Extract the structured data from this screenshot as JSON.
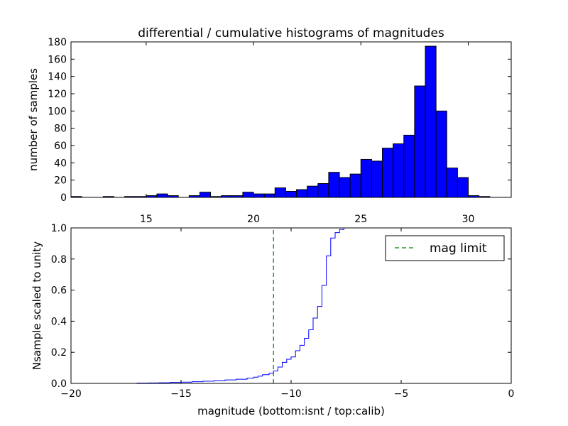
{
  "figure": {
    "title": "differential / cumulative histograms of magnitudes",
    "xlabel": "magnitude (bottom:isnt / top:calib)"
  },
  "chart_data": [
    {
      "type": "bar",
      "title": "differential / cumulative histograms of magnitudes",
      "xlabel": "",
      "ylabel": "number of samples",
      "xlim": [
        11.5,
        32
      ],
      "ylim": [
        0,
        180
      ],
      "xticks": [
        15,
        20,
        25,
        30
      ],
      "yticks": [
        0,
        20,
        40,
        60,
        80,
        100,
        120,
        140,
        160,
        180
      ],
      "xtick_position": "bottom",
      "bar_color": "#0000ff",
      "bar_edge_color": "#000000",
      "bins": [
        {
          "x0": 11.5,
          "x1": 12.0,
          "value": 1
        },
        {
          "x0": 12.0,
          "x1": 12.5,
          "value": 0
        },
        {
          "x0": 12.5,
          "x1": 13.0,
          "value": 0
        },
        {
          "x0": 13.0,
          "x1": 13.5,
          "value": 1
        },
        {
          "x0": 13.5,
          "x1": 14.0,
          "value": 0
        },
        {
          "x0": 14.0,
          "x1": 14.5,
          "value": 1
        },
        {
          "x0": 14.5,
          "x1": 15.0,
          "value": 1
        },
        {
          "x0": 15.0,
          "x1": 15.5,
          "value": 2
        },
        {
          "x0": 15.5,
          "x1": 16.0,
          "value": 4
        },
        {
          "x0": 16.0,
          "x1": 16.5,
          "value": 2
        },
        {
          "x0": 16.5,
          "x1": 17.0,
          "value": 0
        },
        {
          "x0": 17.0,
          "x1": 17.5,
          "value": 2
        },
        {
          "x0": 17.5,
          "x1": 18.0,
          "value": 6
        },
        {
          "x0": 18.0,
          "x1": 18.5,
          "value": 1
        },
        {
          "x0": 18.5,
          "x1": 19.0,
          "value": 2
        },
        {
          "x0": 19.0,
          "x1": 19.5,
          "value": 2
        },
        {
          "x0": 19.5,
          "x1": 20.0,
          "value": 6
        },
        {
          "x0": 20.0,
          "x1": 20.5,
          "value": 4
        },
        {
          "x0": 20.5,
          "x1": 21.0,
          "value": 4
        },
        {
          "x0": 21.0,
          "x1": 21.5,
          "value": 11
        },
        {
          "x0": 21.5,
          "x1": 22.0,
          "value": 7
        },
        {
          "x0": 22.0,
          "x1": 22.5,
          "value": 9
        },
        {
          "x0": 22.5,
          "x1": 23.0,
          "value": 13
        },
        {
          "x0": 23.0,
          "x1": 23.5,
          "value": 16
        },
        {
          "x0": 23.5,
          "x1": 24.0,
          "value": 29
        },
        {
          "x0": 24.0,
          "x1": 24.5,
          "value": 23
        },
        {
          "x0": 24.5,
          "x1": 25.0,
          "value": 27
        },
        {
          "x0": 25.0,
          "x1": 25.5,
          "value": 44
        },
        {
          "x0": 25.5,
          "x1": 26.0,
          "value": 42
        },
        {
          "x0": 26.0,
          "x1": 26.5,
          "value": 57
        },
        {
          "x0": 26.5,
          "x1": 27.0,
          "value": 62
        },
        {
          "x0": 27.0,
          "x1": 27.5,
          "value": 72
        },
        {
          "x0": 27.5,
          "x1": 28.0,
          "value": 129
        },
        {
          "x0": 28.0,
          "x1": 28.5,
          "value": 175
        },
        {
          "x0": 28.5,
          "x1": 29.0,
          "value": 100
        },
        {
          "x0": 29.0,
          "x1": 29.5,
          "value": 34
        },
        {
          "x0": 29.5,
          "x1": 30.0,
          "value": 23
        },
        {
          "x0": 30.0,
          "x1": 30.5,
          "value": 2
        },
        {
          "x0": 30.5,
          "x1": 31.0,
          "value": 1
        }
      ]
    },
    {
      "type": "line",
      "title": "",
      "xlabel": "magnitude (bottom:isnt / top:calib)",
      "ylabel": "Nsample scaled to unity",
      "xlim": [
        -20,
        0
      ],
      "ylim": [
        0,
        1.0
      ],
      "xticks": [
        -20,
        -15,
        -10,
        -5,
        0
      ],
      "yticks": [
        0.0,
        0.2,
        0.4,
        0.6,
        0.8,
        1.0
      ],
      "legend": "top-right",
      "series": [
        {
          "style": "step",
          "color": "#0000ff",
          "x": [
            -20,
            -17.0,
            -16.5,
            -16.0,
            -15.5,
            -15.0,
            -14.5,
            -14.0,
            -13.5,
            -13.0,
            -12.5,
            -12.0,
            -11.7,
            -11.5,
            -11.3,
            -11.0,
            -10.8,
            -10.6,
            -10.4,
            -10.2,
            -10.0,
            -9.8,
            -9.6,
            -9.4,
            -9.2,
            -9.0,
            -8.8,
            -8.6,
            -8.4,
            -8.2,
            -8.0,
            -7.8,
            -7.6,
            -7.4,
            -7.2,
            -0.02
          ],
          "y": [
            0.0,
            0.002,
            0.003,
            0.004,
            0.006,
            0.008,
            0.011,
            0.014,
            0.018,
            0.022,
            0.027,
            0.034,
            0.04,
            0.047,
            0.056,
            0.066,
            0.08,
            0.105,
            0.135,
            0.155,
            0.17,
            0.21,
            0.245,
            0.29,
            0.345,
            0.42,
            0.495,
            0.63,
            0.82,
            0.935,
            0.97,
            0.99,
            1.0,
            1.0,
            1.0,
            1.0
          ]
        },
        {
          "name": "mag limit",
          "style": "dashed",
          "color": "#008000",
          "x": [
            -10.8,
            -10.8
          ],
          "y": [
            0.0,
            1.0
          ]
        }
      ]
    }
  ]
}
